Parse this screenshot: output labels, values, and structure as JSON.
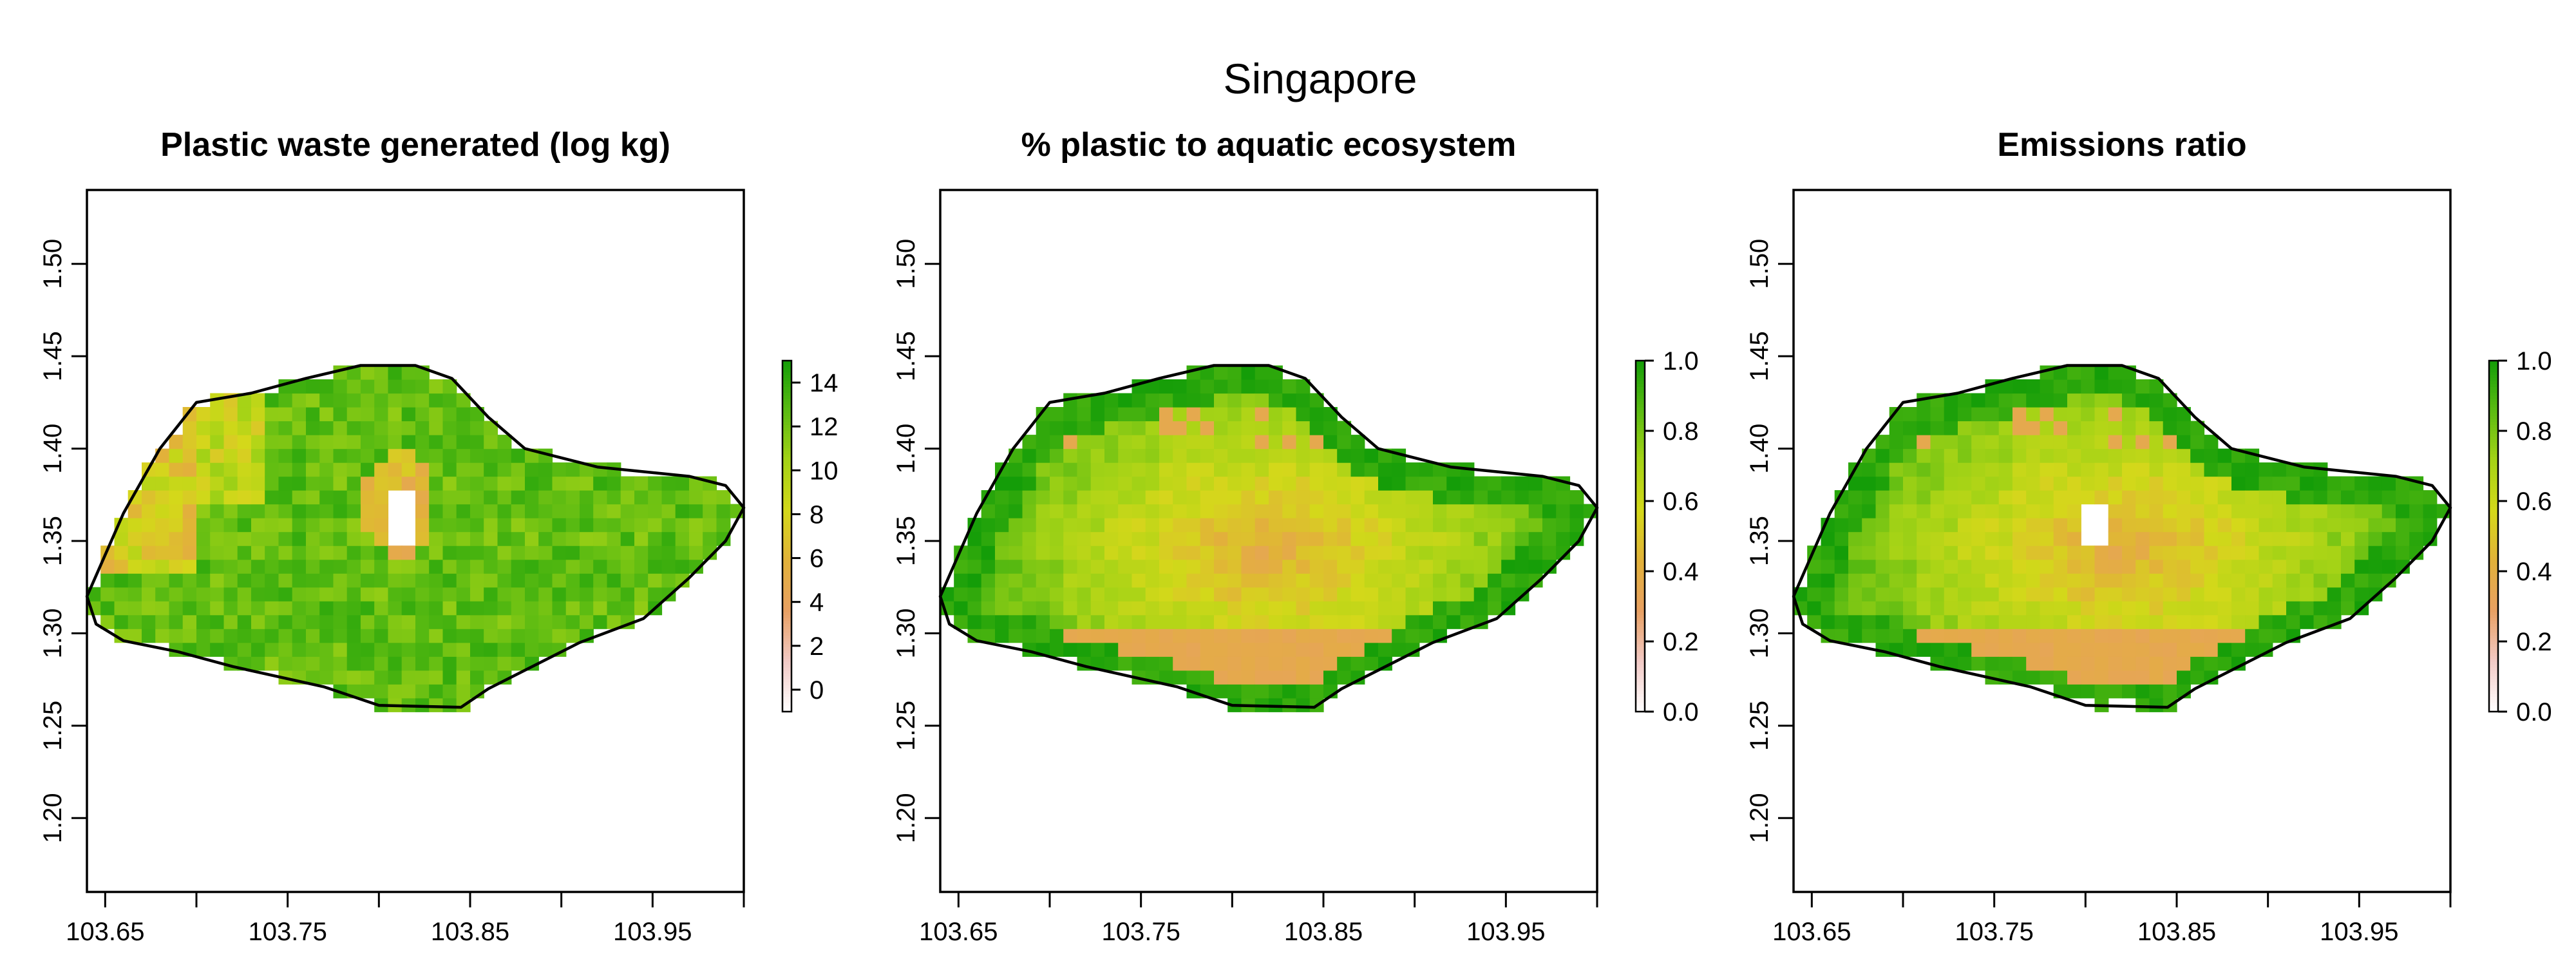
{
  "figure": {
    "title": "Singapore"
  },
  "chart_data": [
    {
      "type": "heatmap",
      "title": "Plastic waste generated (log kg)",
      "xlabel": "",
      "ylabel": "",
      "xlim": [
        103.64,
        104.0
      ],
      "ylim": [
        1.16,
        1.54
      ],
      "x_ticks": [
        "103.65",
        "103.75",
        "103.85",
        "103.95"
      ],
      "x_minor_ticks": [
        103.7,
        103.8,
        103.9,
        104.0
      ],
      "y_ticks": [
        "1.20",
        "1.25",
        "1.30",
        "1.35",
        "1.40",
        "1.45",
        "1.50"
      ],
      "colorbar": {
        "range": [
          -1,
          15
        ],
        "ticks": [
          "0",
          "2",
          "4",
          "6",
          "8",
          "10",
          "12",
          "14"
        ],
        "colors": [
          "#ffffff",
          "#f2cac6",
          "#e8a063",
          "#e2b13a",
          "#d4d81a",
          "#a5d316",
          "#5bbb12",
          "#149d08"
        ]
      },
      "grid": false,
      "legend": "none",
      "description": "Raster over Singapore island; mostly high values (12-14, dark green) across the interior with lower values (4-8, orange/yellow) along the western edge and a small central patch near 103.82, 1.37; a few missing cells inside.",
      "region_summary": {
        "interior_typical": 12.5,
        "west_edge_typical": 5.5,
        "low_patch_center": [
          103.82,
          1.37
        ]
      }
    },
    {
      "type": "heatmap",
      "title": "% plastic to aquatic ecosystem",
      "xlabel": "",
      "ylabel": "",
      "xlim": [
        103.64,
        104.0
      ],
      "ylim": [
        1.16,
        1.54
      ],
      "x_ticks": [
        "103.65",
        "103.75",
        "103.85",
        "103.95"
      ],
      "x_minor_ticks": [
        103.7,
        103.8,
        103.9,
        104.0
      ],
      "y_ticks": [
        "1.20",
        "1.25",
        "1.30",
        "1.35",
        "1.40",
        "1.45",
        "1.50"
      ],
      "colorbar": {
        "range": [
          0,
          1
        ],
        "ticks": [
          "0.0",
          "0.2",
          "0.4",
          "0.6",
          "0.8",
          "1.0"
        ],
        "colors": [
          "#ffffff",
          "#f2cac6",
          "#e8a063",
          "#e2b13a",
          "#d4d81a",
          "#a5d316",
          "#5bbb12",
          "#149d08"
        ]
      },
      "grid": false,
      "legend": "none",
      "description": "Raster over Singapore island; values near 1.0 (green) along the coast, about 0.4-0.5 (yellow/orange) in the centre, and about 0.35 (orange) along the southern coastal strip.",
      "region_summary": {
        "coast_typical": 0.95,
        "center_typical": 0.42,
        "south_strip_typical": 0.35
      }
    },
    {
      "type": "heatmap",
      "title": "Emissions ratio",
      "xlabel": "",
      "ylabel": "",
      "xlim": [
        103.64,
        104.0
      ],
      "ylim": [
        1.16,
        1.54
      ],
      "x_ticks": [
        "103.65",
        "103.75",
        "103.85",
        "103.95"
      ],
      "x_minor_ticks": [
        103.7,
        103.8,
        103.9,
        104.0
      ],
      "y_ticks": [
        "1.20",
        "1.25",
        "1.30",
        "1.35",
        "1.40",
        "1.45",
        "1.50"
      ],
      "colorbar": {
        "range": [
          0,
          1
        ],
        "ticks": [
          "0.0",
          "0.2",
          "0.4",
          "0.6",
          "0.8",
          "1.0"
        ],
        "colors": [
          "#ffffff",
          "#f2cac6",
          "#e8a063",
          "#e2b13a",
          "#d4d81a",
          "#a5d316",
          "#5bbb12",
          "#149d08"
        ]
      },
      "grid": false,
      "legend": "none",
      "description": "Raster over Singapore island similar to the middle panel: green near the coast, yellow/orange in the centre, orange strip in the south with some missing cells.",
      "region_summary": {
        "coast_typical": 0.92,
        "center_typical": 0.43,
        "south_strip_typical": 0.35
      }
    }
  ],
  "outline_lonlat": [
    [
      103.64,
      1.32
    ],
    [
      103.66,
      1.365
    ],
    [
      103.68,
      1.4
    ],
    [
      103.7,
      1.425
    ],
    [
      103.73,
      1.43
    ],
    [
      103.76,
      1.438
    ],
    [
      103.79,
      1.445
    ],
    [
      103.82,
      1.445
    ],
    [
      103.84,
      1.438
    ],
    [
      103.86,
      1.417
    ],
    [
      103.88,
      1.4
    ],
    [
      103.92,
      1.39
    ],
    [
      103.97,
      1.385
    ],
    [
      103.99,
      1.38
    ],
    [
      104.0,
      1.368
    ],
    [
      103.99,
      1.35
    ],
    [
      103.97,
      1.33
    ],
    [
      103.945,
      1.308
    ],
    [
      103.91,
      1.295
    ],
    [
      103.86,
      1.27
    ],
    [
      103.845,
      1.26
    ],
    [
      103.8,
      1.261
    ],
    [
      103.77,
      1.271
    ],
    [
      103.72,
      1.282
    ],
    [
      103.69,
      1.29
    ],
    [
      103.66,
      1.296
    ],
    [
      103.645,
      1.305
    ],
    [
      103.64,
      1.32
    ]
  ]
}
